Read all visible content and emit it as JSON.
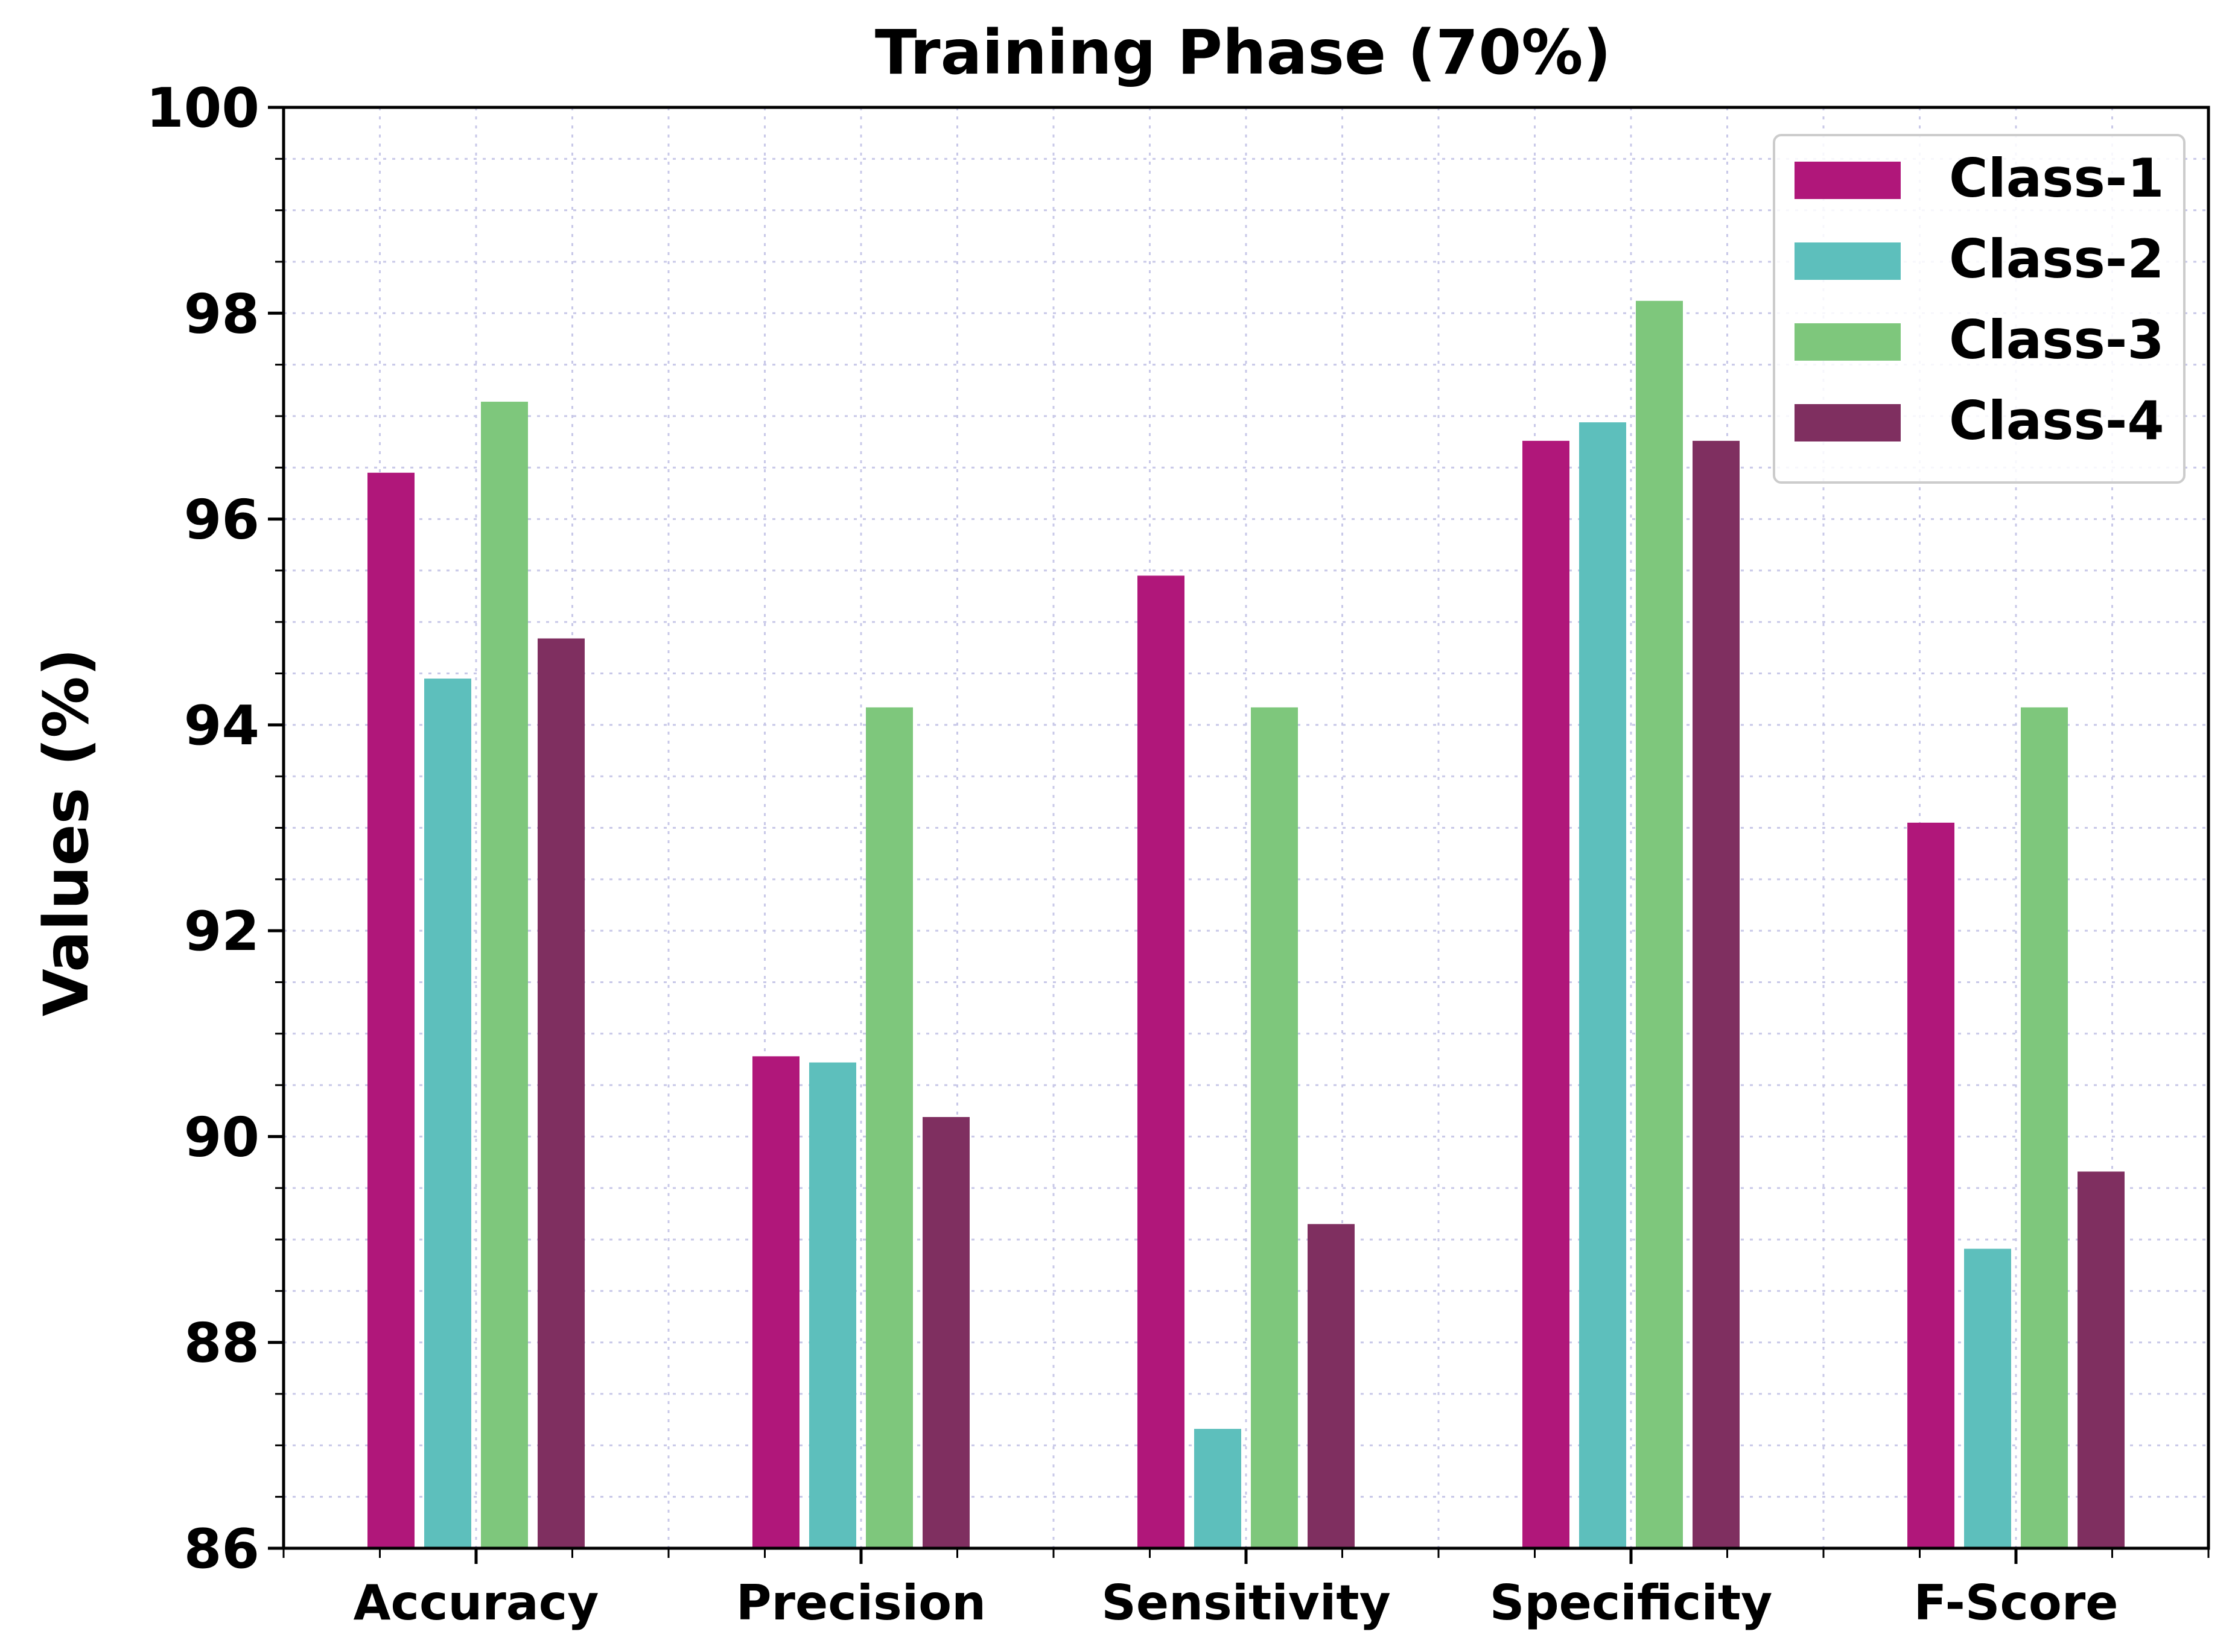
{
  "chart_data": {
    "type": "bar",
    "title": "Training Phase (70%)",
    "xlabel": "",
    "ylabel": "Values (%)",
    "ylim": [
      86,
      100
    ],
    "yticks": [
      "86",
      "88",
      "90",
      "92",
      "94",
      "96",
      "98",
      "100"
    ],
    "grid": true,
    "legend_position": "top-right",
    "categories": [
      "Accuracy",
      "Precision",
      "Sensitivity",
      "Specificity",
      "F-Score"
    ],
    "series": [
      {
        "name": "Class-1",
        "color": "#b0177a",
        "values": [
          96.45,
          90.78,
          95.45,
          96.76,
          93.05
        ]
      },
      {
        "name": "Class-2",
        "color": "#5dbfbc",
        "values": [
          94.45,
          90.72,
          87.16,
          96.94,
          88.91
        ]
      },
      {
        "name": "Class-3",
        "color": "#7ec77c",
        "values": [
          97.14,
          94.17,
          94.17,
          98.12,
          94.17
        ]
      },
      {
        "name": "Class-4",
        "color": "#7f2f60",
        "values": [
          94.84,
          90.19,
          89.15,
          96.76,
          89.66
        ]
      }
    ]
  }
}
